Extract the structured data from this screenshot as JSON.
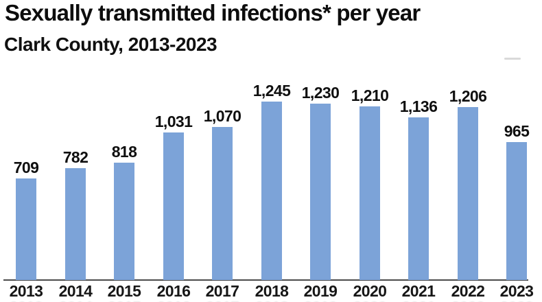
{
  "header": {
    "title": "Sexually transmitted infections* per year",
    "subtitle": "Clark County, 2013-2023"
  },
  "chart_data": {
    "type": "bar",
    "title": "Sexually transmitted infections* per year",
    "subtitle": "Clark County, 2013-2023",
    "categories": [
      "2013",
      "2014",
      "2015",
      "2016",
      "2017",
      "2018",
      "2019",
      "2020",
      "2021",
      "2022",
      "2023"
    ],
    "values": [
      709,
      782,
      818,
      1031,
      1070,
      1245,
      1230,
      1210,
      1136,
      1206,
      965
    ],
    "value_labels": [
      "709",
      "782",
      "818",
      "1,031",
      "1,070",
      "1,245",
      "1,230",
      "1,210",
      "1,136",
      "1,206",
      "965"
    ],
    "xlabel": "",
    "ylabel": "",
    "ylim": [
      0,
      1300
    ],
    "grid": false,
    "legend": false,
    "bar_color": "#7CA3D8",
    "axis_color": "#4a4a4a",
    "label_color": "#0f0f0f"
  }
}
